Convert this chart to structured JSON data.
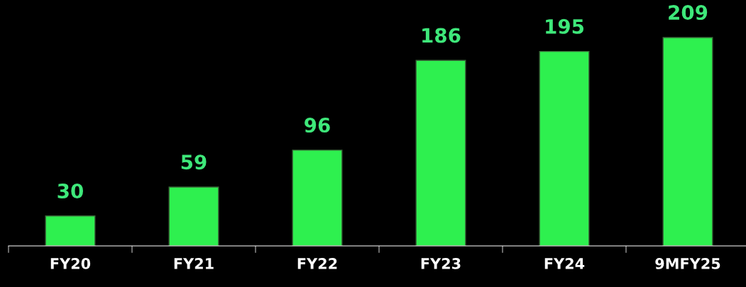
{
  "chart_data": {
    "type": "bar",
    "categories": [
      "FY20",
      "FY21",
      "FY22",
      "FY23",
      "FY24",
      "9MFY25"
    ],
    "values": [
      30,
      59,
      96,
      186,
      195,
      209
    ],
    "color": "#2ef04f",
    "data_labels": true,
    "grid": false,
    "legend": false
  }
}
